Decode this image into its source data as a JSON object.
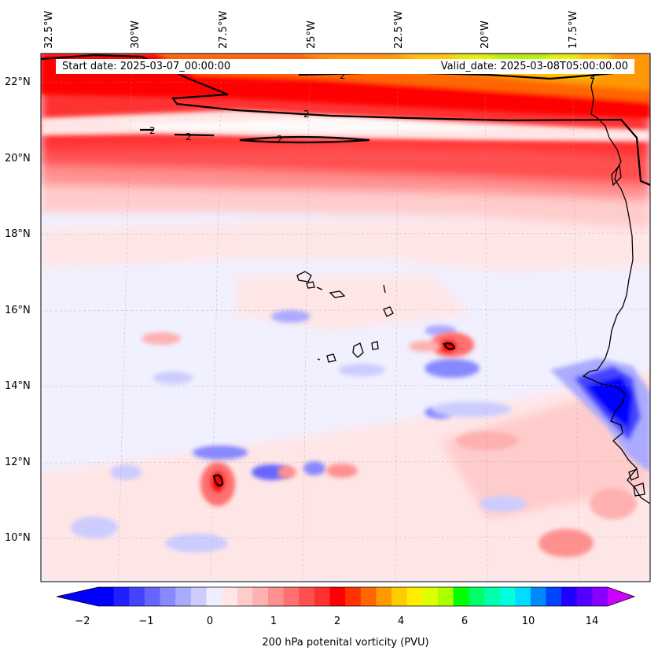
{
  "map": {
    "start_date_text": "Start date: 2025-03-07_00:00:00",
    "valid_date_text": "Valid_date: 2025-03-08T05:00:00.00",
    "longitude_labels": [
      "32.5°W",
      "30°W",
      "27.5°W",
      "25°W",
      "22.5°W",
      "20°W",
      "17.5°W"
    ],
    "latitude_labels": [
      "22°N",
      "20°N",
      "18°N",
      "16°N",
      "14°N",
      "12°N",
      "10°N"
    ],
    "contour_label": "2",
    "coastline_color": "#000000",
    "grid": true
  },
  "colorbar": {
    "label": "200 hPa potenital vorticity (PVU)",
    "tick_labels": [
      "−2",
      "−1",
      "0",
      "1",
      "2",
      "4",
      "6",
      "10",
      "14"
    ],
    "colors": [
      "#0000ff",
      "#2020ff",
      "#4444ff",
      "#6666ff",
      "#8888ff",
      "#aaaaff",
      "#ccccff",
      "#eeeeff",
      "#ffe6e6",
      "#ffcccc",
      "#ffb0b0",
      "#ff9090",
      "#ff7070",
      "#ff5050",
      "#ff3030",
      "#ff0000",
      "#ff3300",
      "#ff6600",
      "#ff9900",
      "#ffcc00",
      "#ffee00",
      "#ddff00",
      "#aaff00",
      "#00ff00",
      "#00ff66",
      "#00ffaa",
      "#00ffdd",
      "#00ddff",
      "#0088ff",
      "#0044ff",
      "#2200ff",
      "#5500ff",
      "#8800ff"
    ],
    "under_color": "#0000ff",
    "over_color": "#cc00ff"
  }
}
